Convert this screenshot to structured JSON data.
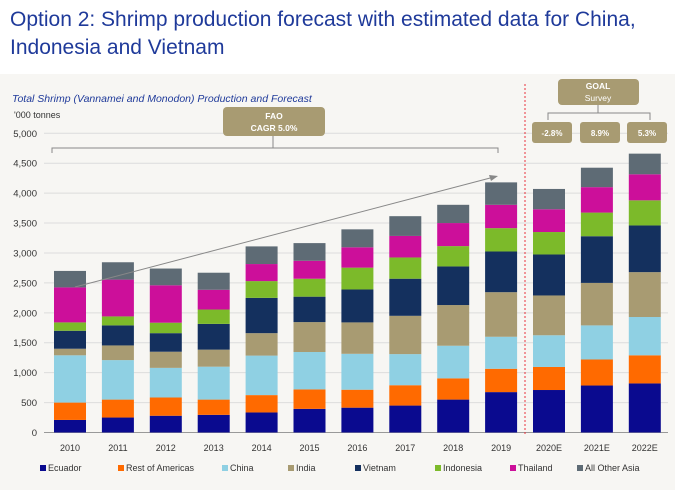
{
  "page_title": "Option 2: Shrimp production forecast with estimated data for China, Indonesia and Vietnam",
  "chart_data": {
    "type": "bar",
    "stacked": true,
    "title": "Total Shrimp (Vannamei and Monodon) Production and Forecast",
    "ylabel": "'000 tonnes",
    "xlabel": "",
    "ylim": [
      0,
      5000
    ],
    "yticks": [
      0,
      500,
      1000,
      1500,
      2000,
      2500,
      3000,
      3500,
      4000,
      4500,
      5000
    ],
    "ytick_labels": [
      "0",
      "500",
      "1,000",
      "1,500",
      "2,000",
      "2,500",
      "3,000",
      "3,500",
      "4,000",
      "4,500",
      "5,000"
    ],
    "grid": true,
    "legend_position": "bottom",
    "categories": [
      "2010",
      "2011",
      "2012",
      "2013",
      "2014",
      "2015",
      "2016",
      "2017",
      "2018",
      "2019",
      "2020E",
      "2021E",
      "2022E"
    ],
    "series": [
      {
        "name": "Ecuador",
        "color": "#0a0a8f",
        "values": [
          210,
          250,
          280,
          295,
          335,
          395,
          415,
          450,
          550,
          675,
          710,
          785,
          820
        ]
      },
      {
        "name": "Rest of Americas",
        "color": "#ff6a00",
        "values": [
          290,
          300,
          305,
          255,
          290,
          325,
          300,
          340,
          355,
          390,
          385,
          435,
          470
        ]
      },
      {
        "name": "China",
        "color": "#8fd0e3",
        "values": [
          790,
          660,
          495,
          550,
          660,
          625,
          600,
          520,
          545,
          535,
          530,
          570,
          640
        ]
      },
      {
        "name": "India",
        "color": "#a89b72",
        "values": [
          110,
          245,
          270,
          285,
          375,
          500,
          525,
          640,
          680,
          745,
          665,
          710,
          750
        ]
      },
      {
        "name": "Vietnam",
        "color": "#14305e",
        "values": [
          300,
          335,
          310,
          430,
          590,
          425,
          550,
          620,
          645,
          680,
          685,
          780,
          780
        ]
      },
      {
        "name": "Indonesia",
        "color": "#7cba2a",
        "values": [
          140,
          150,
          175,
          240,
          280,
          300,
          365,
          355,
          340,
          390,
          375,
          395,
          420
        ]
      },
      {
        "name": "Thailand",
        "color": "#cc0f9a",
        "values": [
          585,
          615,
          625,
          330,
          285,
          300,
          340,
          360,
          385,
          390,
          380,
          425,
          435
        ]
      },
      {
        "name": "All Other Asia",
        "color": "#5e6b75",
        "values": [
          275,
          290,
          280,
          285,
          295,
          295,
          300,
          330,
          305,
          375,
          340,
          325,
          345
        ]
      }
    ],
    "annotations": {
      "fao_line1": "FAO",
      "fao_line2": "CAGR 5.0%",
      "goal_line1": "GOAL",
      "goal_line2": "Survey",
      "goal_growth": [
        "-2.8%",
        "8.9%",
        "5.3%"
      ]
    },
    "colors": {
      "annotation_box": "#a89b72",
      "forecast_divider": "#e8323c",
      "title": "#1f3a9a"
    }
  }
}
